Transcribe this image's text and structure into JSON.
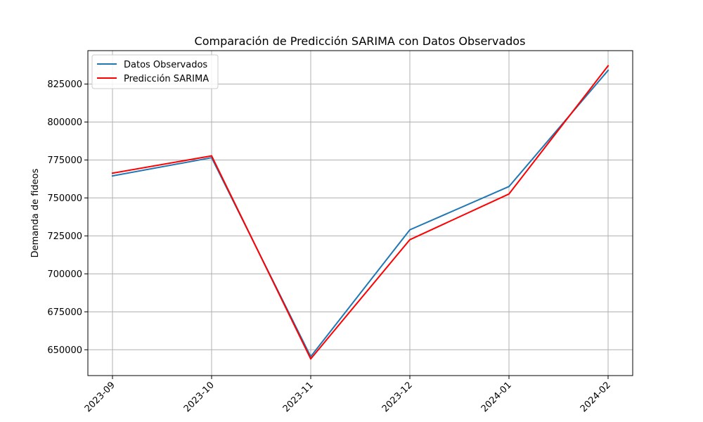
{
  "chart_data": {
    "type": "line",
    "title": "Comparación de Predicción SARIMA con Datos Observados",
    "xlabel": "",
    "ylabel": "Demanda de fideos",
    "x": [
      "2023-09",
      "2023-10",
      "2023-11",
      "2023-12",
      "2024-01",
      "2024-02"
    ],
    "yticks": [
      "650000",
      "675000",
      "700000",
      "725000",
      "750000",
      "775000",
      "800000",
      "825000"
    ],
    "ylim": [
      633000,
      847000
    ],
    "grid": true,
    "legend_position": "top-left",
    "series": [
      {
        "name": "Datos Observados",
        "color": "#1f77b4",
        "values": [
          764500,
          776500,
          645500,
          729000,
          757500,
          834000
        ]
      },
      {
        "name": "Predicción SARIMA",
        "color": "#ff0000",
        "values": [
          766300,
          777700,
          644000,
          722500,
          752600,
          837000
        ]
      }
    ]
  }
}
